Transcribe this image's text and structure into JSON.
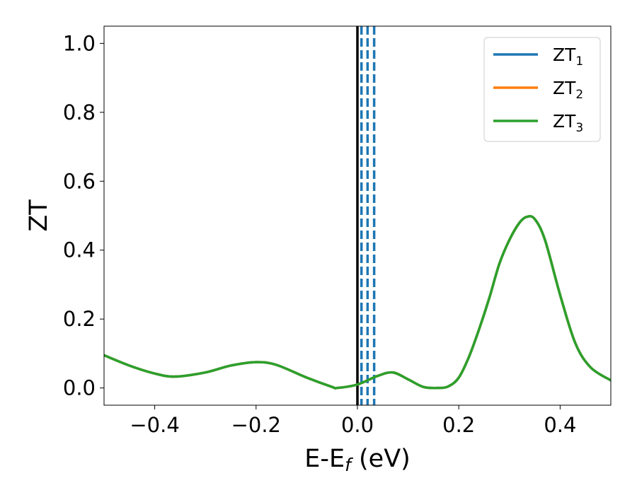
{
  "chart_data": {
    "type": "line",
    "title": "",
    "xlabel": {
      "main": "E-E",
      "sub": "f",
      "rest": " (eV)"
    },
    "ylabel": "ZT",
    "xlim": [
      -0.5,
      0.5
    ],
    "ylim": [
      -0.05,
      1.05
    ],
    "xticks": [
      -0.4,
      -0.2,
      0.0,
      0.2,
      0.4
    ],
    "xtick_labels": [
      "−0.4",
      "−0.2",
      "0.0",
      "0.2",
      "0.4"
    ],
    "yticks": [
      0.0,
      0.2,
      0.4,
      0.6,
      0.8,
      1.0
    ],
    "ytick_labels": [
      "0.0",
      "0.2",
      "0.4",
      "0.6",
      "0.8",
      "1.0"
    ],
    "grid": false,
    "legend_position": "top-right",
    "series": [
      {
        "name": "ZT",
        "sub": "1",
        "color": "#1f77b4",
        "x": [
          -0.5,
          -0.45,
          -0.4,
          -0.36,
          -0.3,
          -0.25,
          -0.2,
          -0.16,
          -0.1,
          -0.05,
          -0.04,
          0.0,
          0.04,
          0.07,
          0.1,
          0.13,
          0.16,
          0.18,
          0.2,
          0.22,
          0.24,
          0.26,
          0.28,
          0.3,
          0.32,
          0.335,
          0.35,
          0.37,
          0.4,
          0.43,
          0.46,
          0.5
        ],
        "y": [
          0.095,
          0.065,
          0.042,
          0.033,
          0.045,
          0.065,
          0.075,
          0.067,
          0.03,
          0.003,
          0.0,
          0.01,
          0.035,
          0.045,
          0.025,
          0.003,
          0.0,
          0.005,
          0.03,
          0.09,
          0.17,
          0.26,
          0.36,
          0.43,
          0.48,
          0.497,
          0.49,
          0.43,
          0.27,
          0.13,
          0.06,
          0.022
        ]
      },
      {
        "name": "ZT",
        "sub": "2",
        "color": "#ff7f0e",
        "x": [
          -0.5,
          -0.45,
          -0.4,
          -0.36,
          -0.3,
          -0.25,
          -0.2,
          -0.16,
          -0.1,
          -0.05,
          -0.04,
          0.0,
          0.04,
          0.07,
          0.1,
          0.13,
          0.16,
          0.18,
          0.2,
          0.22,
          0.24,
          0.26,
          0.28,
          0.3,
          0.32,
          0.335,
          0.35,
          0.37,
          0.4,
          0.43,
          0.46,
          0.5
        ],
        "y": [
          0.095,
          0.065,
          0.042,
          0.033,
          0.045,
          0.065,
          0.075,
          0.067,
          0.03,
          0.003,
          0.0,
          0.01,
          0.035,
          0.045,
          0.025,
          0.003,
          0.0,
          0.005,
          0.03,
          0.09,
          0.17,
          0.26,
          0.36,
          0.43,
          0.48,
          0.497,
          0.49,
          0.43,
          0.27,
          0.13,
          0.06,
          0.022
        ]
      },
      {
        "name": "ZT",
        "sub": "3",
        "color": "#2ca02c",
        "x": [
          -0.5,
          -0.45,
          -0.4,
          -0.36,
          -0.3,
          -0.25,
          -0.2,
          -0.16,
          -0.1,
          -0.05,
          -0.04,
          0.0,
          0.04,
          0.07,
          0.1,
          0.13,
          0.16,
          0.18,
          0.2,
          0.22,
          0.24,
          0.26,
          0.28,
          0.3,
          0.32,
          0.335,
          0.35,
          0.37,
          0.4,
          0.43,
          0.46,
          0.5
        ],
        "y": [
          0.095,
          0.065,
          0.042,
          0.033,
          0.045,
          0.065,
          0.075,
          0.067,
          0.03,
          0.003,
          0.0,
          0.01,
          0.035,
          0.045,
          0.025,
          0.003,
          0.0,
          0.005,
          0.03,
          0.09,
          0.17,
          0.26,
          0.36,
          0.43,
          0.48,
          0.497,
          0.49,
          0.43,
          0.27,
          0.13,
          0.06,
          0.022
        ]
      }
    ],
    "vertical_lines": [
      {
        "x": 0.0,
        "style": "solid",
        "color": "#000000"
      },
      {
        "x": 0.008,
        "style": "dashed",
        "color": "#1f77b4"
      },
      {
        "x": 0.02,
        "style": "dashed",
        "color": "#1f77b4"
      },
      {
        "x": 0.033,
        "style": "dashed",
        "color": "#1f77b4"
      }
    ]
  }
}
